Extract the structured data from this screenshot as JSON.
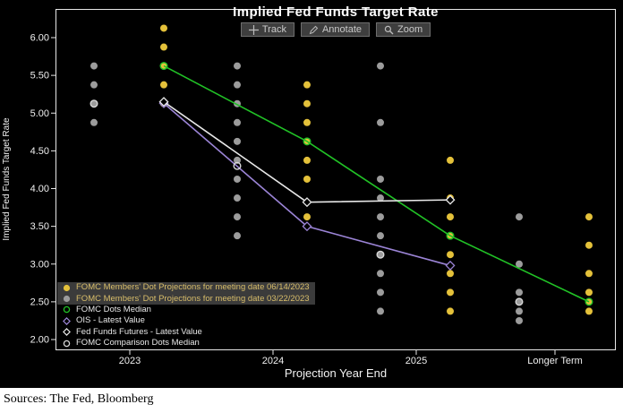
{
  "page": {
    "sources_text": "Sources: The Fed, Bloomberg"
  },
  "chart": {
    "title": "Implied Fed Funds Target Rate",
    "toolbar": [
      {
        "id": "track",
        "label": "Track"
      },
      {
        "id": "annotate",
        "label": "Annotate"
      },
      {
        "id": "zoom",
        "label": "Zoom"
      }
    ],
    "y_axis": {
      "label": "Implied Fed Funds Target Rate",
      "ticks": [
        "6.00",
        "5.50",
        "5.00",
        "4.50",
        "4.00",
        "3.50",
        "3.00",
        "2.50",
        "2.00"
      ]
    },
    "x_axis": {
      "label": "Projection Year End",
      "ticks": [
        "2023",
        "2024",
        "2025",
        "Longer Term"
      ]
    }
  },
  "legend": {
    "items": [
      {
        "label": "FOMC Members' Dot Projections for meeting date 06/14/2023",
        "marker": "circle-filled",
        "color": "#e4c13a",
        "highlighted": true
      },
      {
        "label": "FOMC Members' Dot Projections for meeting date 03/22/2023",
        "marker": "circle-filled",
        "color": "#9c9c9c",
        "highlighted": true
      },
      {
        "label": "FOMC Dots Median",
        "marker": "circle-open",
        "color": "#21c226",
        "highlighted": false
      },
      {
        "label": "OIS - Latest Value",
        "marker": "diamond-open",
        "color": "#9b84d6",
        "highlighted": false
      },
      {
        "label": "Fed Funds Futures - Latest Value",
        "marker": "diamond-open",
        "color": "#e8e8e8",
        "highlighted": false
      },
      {
        "label": "FOMC Comparison Dots Median",
        "marker": "circle-open",
        "color": "#d8d8d8",
        "highlighted": false
      }
    ]
  },
  "chart_data": {
    "type": "scatter",
    "title": "Implied Fed Funds Target Rate",
    "xlabel": "Projection Year End",
    "ylabel": "Implied Fed Funds Target Rate",
    "ylim": [
      2.0,
      6.25
    ],
    "grid": false,
    "legend_position": "bottom-left",
    "categories": [
      "2023",
      "2024",
      "2025",
      "Longer Term"
    ],
    "dot_series": [
      {
        "name": "FOMC Members' Dot Projections for meeting date 06/14/2023",
        "color": "#e4c13a",
        "column_offset": 38,
        "dots": [
          [
            5.125,
            5.375,
            5.625,
            5.875,
            6.125
          ],
          [
            3.625,
            4.125,
            4.375,
            4.625,
            4.875,
            5.125,
            5.375
          ],
          [
            2.375,
            2.625,
            2.875,
            3.125,
            3.375,
            3.625,
            3.875,
            4.375
          ],
          [
            2.375,
            2.5,
            2.625,
            2.875,
            3.25,
            3.625
          ]
        ]
      },
      {
        "name": "FOMC Members' Dot Projections for meeting date 03/22/2023",
        "color": "#9c9c9c",
        "column_offset": -40,
        "dots": [
          [
            4.875,
            5.125,
            5.375,
            5.625
          ],
          [
            3.375,
            3.625,
            3.875,
            4.125,
            4.375,
            4.625,
            4.875,
            5.125,
            5.375,
            5.625
          ],
          [
            2.375,
            2.625,
            2.875,
            3.125,
            3.375,
            3.625,
            3.875,
            4.125,
            4.875,
            5.625
          ],
          [
            2.25,
            2.375,
            2.5,
            2.625,
            3.0,
            3.625
          ]
        ]
      }
    ],
    "line_series": [
      {
        "name": "FOMC Dots Median",
        "color": "#21c226",
        "marker": "circle-open",
        "column_offset": 38,
        "line": true,
        "values": [
          5.625,
          4.625,
          3.375,
          2.5
        ]
      },
      {
        "name": "OIS - Latest Value",
        "color": "#9b84d6",
        "marker": "diamond-open",
        "column_offset": 38,
        "line": true,
        "values": [
          5.13,
          3.5,
          2.98,
          null
        ]
      },
      {
        "name": "Fed Funds Futures - Latest Value",
        "color": "#e8e8e8",
        "marker": "diamond-open",
        "column_offset": 38,
        "line": true,
        "values": [
          5.15,
          3.82,
          3.85,
          null
        ]
      },
      {
        "name": "FOMC Comparison Dots Median",
        "color": "#d8d8d8",
        "marker": "circle-open",
        "column_offset": -40,
        "line": false,
        "values": [
          5.125,
          4.3,
          3.125,
          2.5
        ]
      }
    ]
  }
}
